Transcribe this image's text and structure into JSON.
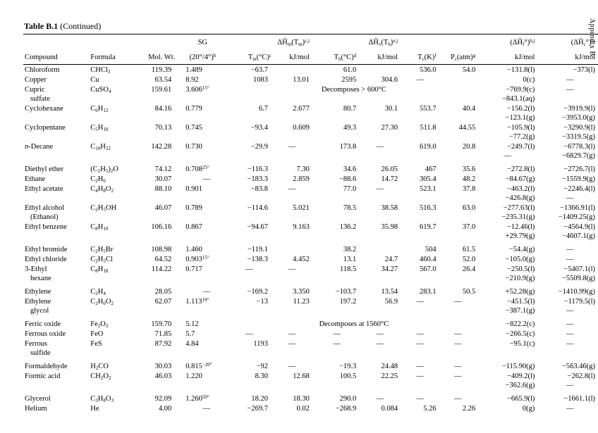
{
  "page": {
    "title_bold": "Table B.1",
    "title_rest": " (Continued)",
    "sidebar_text": "Appendix B"
  },
  "table": {
    "header_top": [
      "",
      "",
      "",
      "SG",
      "",
      "ΔĤ_m_(T_m_)^c,j^",
      "",
      "ΔĤ_v_(T_b_)^e,j^",
      "",
      "",
      "(ΔĤ_f_°)^h,j^",
      "(ΔĤ_c_°)^i,j^"
    ],
    "header_bottom": [
      "Compound",
      "Formula",
      "Mol. Wt.",
      "(20°/4°)^b^",
      "T_m_(°C)^c^",
      "kJ/mol",
      "T_b_(°C)^d^",
      "kJ/mol",
      "T_c_(K)^f^",
      "P_c_(atm)^g^",
      "kJ/mol",
      "kJ/mol"
    ],
    "rows": [
      {
        "cells": [
          "Chloroform",
          "CHCl_3_",
          "119.39",
          "1.489",
          "−63.7",
          "",
          "61.0",
          "",
          "536.0",
          "54.0",
          "−131.8(l)",
          "−373(l)"
        ]
      },
      {
        "cells": [
          "Copper",
          "Cu",
          "63.54",
          "8.92",
          "1083",
          "13.01",
          "2595",
          "304.6",
          "—",
          "",
          "0(c)",
          "—"
        ]
      },
      {
        "cells": [
          "Cupric\nsulfate",
          "CuSO_4_",
          "159.61",
          "3.606^15°^"
        ],
        "span": "Decomposes > 600°C",
        "tail": [
          "−769.9(c)\n−843.1(aq)",
          "—"
        ]
      },
      {
        "cells": [
          "Cyclohexane",
          "C_6_H_12_",
          "84.16",
          "0.779",
          "6.7",
          "2.677",
          "80.7",
          "30.1",
          "553.7",
          "40.4",
          "−156.2(l)\n−123.1(g)",
          "−3919.9(l)\n−3953.0(g)"
        ]
      },
      {
        "cells": [
          "Cyclopentane",
          "C_5_H_10_",
          "70.13",
          "0.745",
          "−93.4",
          "0.609",
          "49.3",
          "27.30",
          "511.8",
          "44.55",
          "−105.9(l)\n−77.2(g)",
          "−3290.9(l)\n−3319.5(g)"
        ]
      },
      {
        "cells": [
          "*n*-Decane",
          "C_10_H_22_",
          "142.28",
          "0.730",
          "−29.9",
          "—",
          "173.8",
          "—",
          "619.0",
          "20.8",
          "−249.7(l)\n—",
          "−6778.3(l)\n−6829.7(g)"
        ]
      },
      {
        "gap": true,
        "cells": [
          "Diethyl ether",
          "(C_2_H_5_)_2_O",
          "74.12",
          "0.708^25°^",
          "−116.3",
          "7.30",
          "34.6",
          "26.05",
          "467",
          "35.6",
          "−272.8(l)",
          "−2726.7(l)"
        ]
      },
      {
        "cells": [
          "Ethane",
          "C_2_H_6_",
          "30.07",
          "—",
          "−183.3",
          "2.859",
          "−88.6",
          "14.72",
          "305.4",
          "48.2",
          "−84.67(g)",
          "−1559.9(g)"
        ]
      },
      {
        "cells": [
          "Ethyl acetate",
          "C_4_H_8_O_2_",
          "88.10",
          "0.901",
          "−83.8",
          "—",
          "77.0",
          "—",
          "523.1",
          "37.8",
          "−463.2(l)\n−426.8(g)",
          "−2246.4(l)\n—"
        ]
      },
      {
        "cells": [
          "Ethyl alcohol\n(Ethanol)",
          "C_2_H_5_OH",
          "46.07",
          "0.789",
          "−114.6",
          "5.021",
          "78.5",
          "38.58",
          "516.3",
          "63.0",
          "−277.63(l)\n−235.31(g)",
          "−1366.91(l)\n−1409.25(g)"
        ]
      },
      {
        "cells": [
          "Ethyl benzene",
          "C_8_H_10_",
          "106.16",
          "0.867",
          "−94.67",
          "9.163",
          "136.2",
          "35.98",
          "619.7",
          "37.0",
          "−12.46(l)\n+29.79(g)",
          "−4564.9(l)\n−4607.1(g)"
        ]
      },
      {
        "gap": true,
        "cells": [
          "Ethyl bromide",
          "C_2_H_5_Br",
          "108.98",
          "1.460",
          "−119.1",
          "",
          "38.2",
          "",
          "504",
          "61.5",
          "−54.4(g)",
          "—"
        ]
      },
      {
        "cells": [
          "Ethyl chloride",
          "C_2_H_5_Cl",
          "64.52",
          "0.903^15°^",
          "−138.3",
          "4.452",
          "13.1",
          "24.7",
          "460.4",
          "52.0",
          "−105.0(g)",
          "—"
        ]
      },
      {
        "cells": [
          "3-Ethyl\nhexane",
          "C_8_H_18_",
          "114.22",
          "0.717",
          "—",
          "—",
          "118.5",
          "34.27",
          "567.0",
          "26.4",
          "−250.5(l)\n−210.9(g)",
          "−5407.1(l)\n−5509.8(g)"
        ]
      },
      {
        "gap": true,
        "cells": [
          "Ethylene",
          "C_2_H_4_",
          "28.05",
          "—",
          "−169.2",
          "3.350",
          "−103.7",
          "13.54",
          "283.1",
          "50.5",
          "+52.28(g)",
          "−1410.99(g)"
        ]
      },
      {
        "cells": [
          "Ethylene\nglycol",
          "C_2_H_6_O_2_",
          "62.07",
          "1.113^19°^",
          "−13",
          "11.23",
          "197.2",
          "56.9",
          "—",
          "—",
          "−451.5(l)\n−387.1(g)",
          "−1179.5(l)\n—"
        ]
      },
      {
        "gap": true,
        "cells": [
          "Ferric oxide",
          "Fe_2_O_3_",
          "159.70",
          "5.12"
        ],
        "span": "Decomposes at 1560°C",
        "tail": [
          "−822.2(c)",
          "—"
        ]
      },
      {
        "cells": [
          "Ferrous oxide",
          "FeO",
          "71.85",
          "5.7",
          "—",
          "—",
          "—",
          "—",
          "—",
          "—",
          "−266.5(c)",
          "—"
        ]
      },
      {
        "cells": [
          "Ferrous\nsulfide",
          "FeS",
          "87.92",
          "4.84",
          "1193",
          "—",
          "—",
          "—",
          "—",
          "—",
          "−95.1(c)",
          "—"
        ]
      },
      {
        "gap": true,
        "cells": [
          "Formaldehyde",
          "H_2_CO",
          "30.03",
          "0.815^−20°^",
          "−92",
          "—",
          "−19.3",
          "24.48",
          "—",
          "—",
          "−115.90(g)",
          "−563.46(g)"
        ]
      },
      {
        "cells": [
          "Formic acid",
          "CH_2_O_2_",
          "46.03",
          "1.220",
          "8.30",
          "12.68",
          "100.5",
          "22.25",
          "—",
          "—",
          "−409.2(l)\n−362.6(g)",
          "−262.8(l)\n—"
        ]
      },
      {
        "gap": true,
        "cells": [
          "Glycerol",
          "C_3_H_8_O_3_",
          "92.09",
          "1.260^50°^",
          "18.20",
          "18.30",
          "290.0",
          "—",
          "—",
          "—",
          "−665.9(l)",
          "−1661.1(l)"
        ]
      },
      {
        "cells": [
          "Helium",
          "He",
          "4.00",
          "—",
          "−269.7",
          "0.02",
          "−268.9",
          "0.084",
          "5.26",
          "2.26",
          "0(g)",
          "—"
        ]
      }
    ]
  }
}
